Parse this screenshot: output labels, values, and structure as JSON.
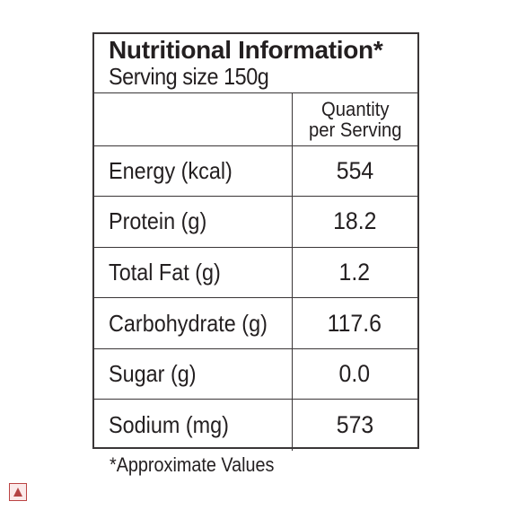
{
  "label": {
    "title": "Nutritional Information*",
    "serving_size": "Serving size 150g",
    "quantity_header_line1": "Quantity",
    "quantity_header_line2": "per Serving",
    "rows": [
      {
        "name": "Energy (kcal)",
        "value": "554"
      },
      {
        "name": "Protein (g)",
        "value": "18.2"
      },
      {
        "name": "Total Fat (g)",
        "value": "1.2"
      },
      {
        "name": "Carbohydrate (g)",
        "value": "117.6"
      },
      {
        "name": "Sugar (g)",
        "value": "0.0"
      },
      {
        "name": "Sodium (mg)",
        "value": "573"
      }
    ],
    "footnote": "*Approximate Values"
  },
  "corner_icon": {
    "icon": "expand-up-icon",
    "color": "#b44444"
  }
}
